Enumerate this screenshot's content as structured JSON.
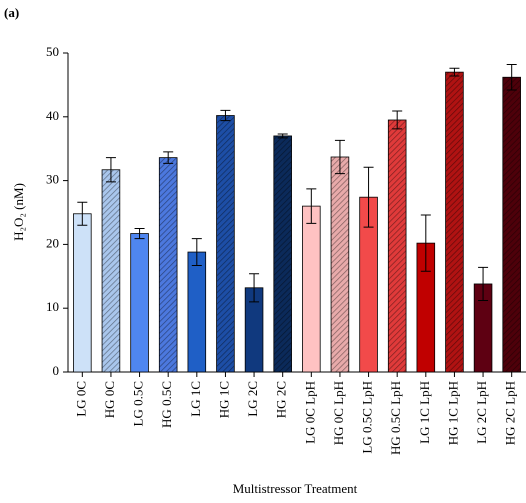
{
  "chart_data": {
    "type": "bar",
    "panel_label": "(a)",
    "y_label": "H₂O₂ (nM)",
    "x_label": "Multistressor Treatment",
    "categories": [
      "LG 0C",
      "HG 0C",
      "LG 0.5C",
      "HG 0.5C",
      "LG 1C",
      "HG 1C",
      "LG 2C",
      "HG 2C",
      "LG 0C LpH",
      "HG 0C LpH",
      "LG 0.5C LpH",
      "HG 0.5C LpH",
      "LG 1C LpH",
      "HG 1C LpH",
      "LG 2C LpH",
      "HG 2C LpH"
    ],
    "values": [
      24.8,
      31.7,
      21.7,
      33.6,
      18.8,
      40.2,
      13.2,
      37.0,
      26.0,
      33.7,
      27.4,
      39.5,
      20.2,
      47.0,
      13.8,
      46.2
    ],
    "errors": [
      1.8,
      1.9,
      0.8,
      0.9,
      2.1,
      0.8,
      2.2,
      0.3,
      2.7,
      2.6,
      4.7,
      1.4,
      4.4,
      0.6,
      2.6,
      2.0
    ],
    "colors": [
      "#cde1f8",
      "#a9c6ec",
      "#4f86f0",
      "#4c78de",
      "#1f5fc6",
      "#1d4ea6",
      "#10397e",
      "#0b2a5a",
      "#ffc2c2",
      "#e8aaaa",
      "#f24a4a",
      "#e03a3a",
      "#c00000",
      "#b01212",
      "#5e0012",
      "#4e000a"
    ],
    "hatched": [
      false,
      true,
      false,
      true,
      false,
      true,
      false,
      true,
      false,
      true,
      false,
      true,
      false,
      true,
      false,
      true
    ],
    "ylim": [
      0,
      50
    ],
    "yticks": [
      0,
      10,
      20,
      30,
      40,
      50
    ]
  }
}
